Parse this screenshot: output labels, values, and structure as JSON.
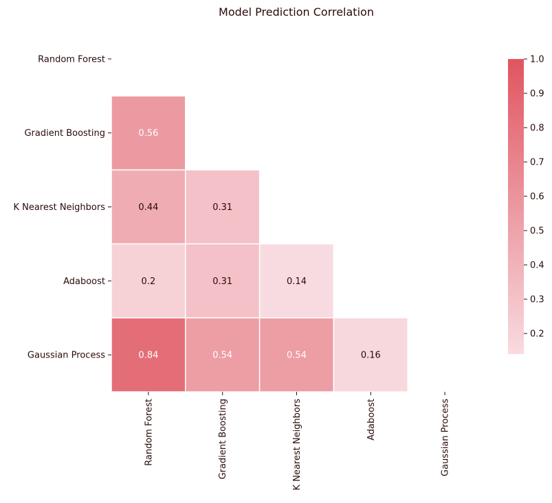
{
  "chart_data": {
    "type": "heatmap",
    "title": "Model Prediction Correlation",
    "xlabel": "",
    "ylabel": "",
    "row_labels": [
      "Random Forest",
      "Gradient Boosting",
      "K Nearest Neighbors",
      "Adaboost",
      "Gaussian Process"
    ],
    "col_labels": [
      "Random Forest",
      "Gradient Boosting",
      "K Nearest Neighbors",
      "Adaboost",
      "Gaussian Process"
    ],
    "mask": "upper-triangle-including-diagonal",
    "cells": [
      {
        "row": 1,
        "col": 0,
        "value": 0.56
      },
      {
        "row": 2,
        "col": 0,
        "value": 0.44
      },
      {
        "row": 2,
        "col": 1,
        "value": 0.31
      },
      {
        "row": 3,
        "col": 0,
        "value": 0.2
      },
      {
        "row": 3,
        "col": 1,
        "value": 0.31
      },
      {
        "row": 3,
        "col": 2,
        "value": 0.14
      },
      {
        "row": 4,
        "col": 0,
        "value": 0.84
      },
      {
        "row": 4,
        "col": 1,
        "value": 0.54
      },
      {
        "row": 4,
        "col": 2,
        "value": 0.54
      },
      {
        "row": 4,
        "col": 3,
        "value": 0.16
      }
    ],
    "colorbar": {
      "vmin": 0.14,
      "vmax": 1.0,
      "ticks": [
        0.2,
        0.3,
        0.4,
        0.5,
        0.6,
        0.7,
        0.8,
        0.9,
        1.0
      ],
      "tick_labels": [
        "0.2",
        "0.3",
        "0.4",
        "0.5",
        "0.6",
        "0.7",
        "0.8",
        "0.9",
        "1.0"
      ],
      "color_low": "#f8dbe0",
      "color_high": "#e05560"
    },
    "cell_border_color": "#ffffff",
    "text_color_dark": "#2a0a0a",
    "text_color_light": "#ffffff"
  }
}
